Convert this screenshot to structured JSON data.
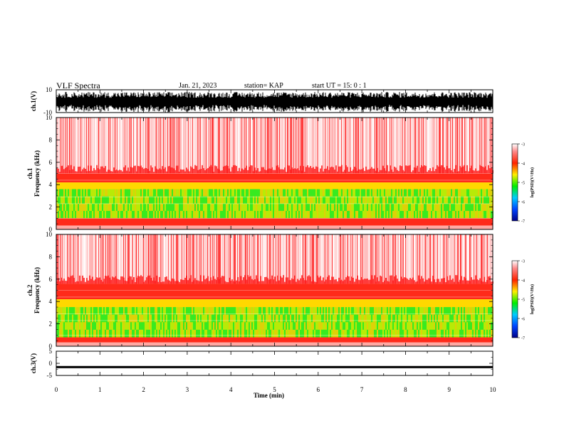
{
  "header": {
    "title": "VLF Spectra",
    "date": "Jan. 21, 2023",
    "station": "station= KAP",
    "start": "start  UT =    15: 0  : 1"
  },
  "colorbar_label": "log(PSD)(V²/Hz)",
  "colors": {
    "background": "#ffffff",
    "spectrogram_high_freq": "#ff2a2a",
    "spectrogram_band_green": "#33dd33",
    "spectrogram_band_yellow": "#ffee00",
    "waveform": "#000000"
  },
  "chart_data": [
    {
      "type": "line",
      "panel": "ch1-waveform",
      "ylabel": "ch.1(V)",
      "ylim": [
        -10,
        10
      ],
      "yticks": [
        "10",
        "-10"
      ],
      "note": "dense oscillating waveform, mostly between -8 and 8 V"
    },
    {
      "type": "heatmap",
      "panel": "ch1-spectrogram",
      "ylabel": "ch.1\nFrequency (kHz)",
      "ylim": [
        0,
        10
      ],
      "yticks": [
        "0",
        "2",
        "4",
        "6",
        "8",
        "10"
      ],
      "bands": [
        {
          "from_khz": 5.0,
          "to_khz": 10.0,
          "level": "low (white/red speckle)"
        },
        {
          "from_khz": 4.2,
          "to_khz": 5.0,
          "level": "red"
        },
        {
          "from_khz": 3.6,
          "to_khz": 4.2,
          "level": "yellow"
        },
        {
          "from_khz": 1.0,
          "to_khz": 3.6,
          "level": "green/yellow"
        },
        {
          "from_khz": 0.0,
          "to_khz": 1.0,
          "level": "red"
        }
      ],
      "colorbar": {
        "ticks": [
          "-3",
          "-4",
          "-5",
          "-6",
          "-7"
        ],
        "range": [
          -7,
          -3
        ]
      }
    },
    {
      "type": "heatmap",
      "panel": "ch2-spectrogram",
      "ylabel": "ch.2\nFrequency (kHz)",
      "ylim": [
        0,
        10
      ],
      "yticks": [
        "0",
        "2",
        "4",
        "6",
        "8",
        "10"
      ],
      "bands": [
        {
          "from_khz": 5.6,
          "to_khz": 10.0,
          "level": "low (white/red speckle)"
        },
        {
          "from_khz": 4.2,
          "to_khz": 5.6,
          "level": "red"
        },
        {
          "from_khz": 3.5,
          "to_khz": 4.2,
          "level": "yellow"
        },
        {
          "from_khz": 0.8,
          "to_khz": 3.5,
          "level": "green/yellow"
        },
        {
          "from_khz": 0.0,
          "to_khz": 0.8,
          "level": "red"
        }
      ],
      "colorbar": {
        "ticks": [
          "-3",
          "-4",
          "-5",
          "-6",
          "-7"
        ],
        "range": [
          -7,
          -3
        ]
      }
    },
    {
      "type": "line",
      "panel": "ch3-waveform",
      "ylabel": "ch.3(V)",
      "ylim": [
        -5,
        5
      ],
      "yticks": [
        "5",
        "0",
        "-5"
      ],
      "note": "flat thick band at about -1.5 V"
    }
  ],
  "xaxis": {
    "xlabel": "Time (min)",
    "xlim": [
      0,
      10
    ],
    "ticks": [
      "0",
      "1",
      "2",
      "3",
      "4",
      "5",
      "6",
      "7",
      "8",
      "9",
      "10"
    ]
  }
}
